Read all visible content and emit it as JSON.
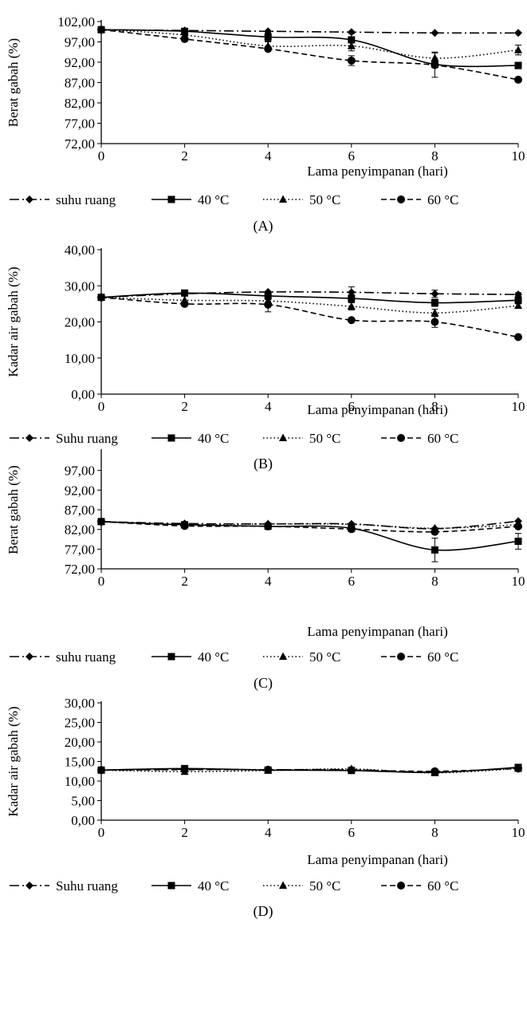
{
  "chart_data": [
    {
      "type": "line",
      "panel_label": "(A)",
      "xlabel": "Lama penyimpanan (hari)",
      "ylabel": "Berat gabah (%)",
      "x": [
        0,
        2,
        4,
        6,
        8,
        10
      ],
      "ylim": [
        72,
        102
      ],
      "yticks": [
        "72,00",
        "77,00",
        "82,00",
        "87,00",
        "92,00",
        "97,00",
        "102,00"
      ],
      "xticks": [
        "0",
        "2",
        "4",
        "6",
        "8",
        "10"
      ],
      "grid": false,
      "legend": "bottom",
      "series": [
        {
          "name": "suhu ruang",
          "style": "dashdot",
          "marker": "diamond",
          "values": [
            100,
            99.8,
            99.6,
            99.4,
            99.2,
            99.2
          ],
          "errors": [
            0,
            0,
            0,
            0,
            0,
            0
          ]
        },
        {
          "name": "40 °C",
          "style": "solid",
          "marker": "square",
          "values": [
            100,
            99.6,
            98.2,
            97.5,
            91.5,
            91.2
          ],
          "errors": [
            0,
            0,
            1,
            1.5,
            0.8,
            0.8
          ]
        },
        {
          "name": "50 °C",
          "style": "dotted",
          "marker": "triangle",
          "values": [
            100,
            98.7,
            96,
            96,
            93,
            95
          ],
          "errors": [
            0,
            0,
            1,
            1.2,
            1.5,
            1.2
          ]
        },
        {
          "name": "60 °C",
          "style": "dashed",
          "marker": "circle",
          "values": [
            100,
            97.7,
            95.3,
            92.4,
            91.3,
            87.7
          ],
          "errors": [
            0,
            0,
            0.5,
            1.2,
            3,
            0.5
          ]
        }
      ]
    },
    {
      "type": "line",
      "panel_label": "(B)",
      "xlabel": "Lama penyimpanan (hari)",
      "ylabel": "Kadar air gabah (%)",
      "x": [
        0,
        2,
        4,
        6,
        8,
        10
      ],
      "ylim": [
        0,
        40
      ],
      "yticks": [
        "0,00",
        "10,00",
        "20,00",
        "30,00",
        "40,00"
      ],
      "xticks": [
        "0",
        "2",
        "4",
        "6",
        "8",
        "10"
      ],
      "grid": false,
      "legend": "bottom",
      "series": [
        {
          "name": "Suhu ruang",
          "style": "dashdot",
          "marker": "diamond",
          "values": [
            26.8,
            27.8,
            28.3,
            28.2,
            27.8,
            27.6
          ],
          "errors": [
            0,
            0,
            0,
            1.5,
            1,
            0.5
          ]
        },
        {
          "name": "40 °C",
          "style": "solid",
          "marker": "square",
          "values": [
            26.8,
            28,
            27.2,
            26.5,
            25.3,
            26
          ],
          "errors": [
            0,
            0,
            1,
            1,
            1,
            0.5
          ]
        },
        {
          "name": "50 °C",
          "style": "dotted",
          "marker": "triangle",
          "values": [
            26.8,
            26,
            25.8,
            24.3,
            22.5,
            24.5
          ],
          "errors": [
            0,
            0,
            0,
            1,
            1,
            0.5
          ]
        },
        {
          "name": "60 °C",
          "style": "dashed",
          "marker": "circle",
          "values": [
            26.8,
            25,
            24.8,
            20.5,
            20,
            15.8
          ],
          "errors": [
            0,
            0,
            2,
            0.5,
            1.5,
            0.3
          ]
        }
      ]
    },
    {
      "type": "line",
      "panel_label": "(C)",
      "xlabel": "Lama penyimpanan  (hari)",
      "ylabel": "Berat gabah (%)",
      "x": [
        0,
        2,
        4,
        6,
        8,
        10
      ],
      "ylim": [
        72,
        102
      ],
      "yticks": [
        "72,00",
        "77,00",
        "82,00",
        "87,00",
        "92,00",
        "97,00"
      ],
      "xticks": [
        "0",
        "2",
        "4",
        "6",
        "8",
        "10"
      ],
      "grid": false,
      "legend": "bottom",
      "series": [
        {
          "name": "suhu ruang",
          "style": "dashdot",
          "marker": "diamond",
          "values": [
            84,
            83.5,
            83.4,
            83.4,
            82.2,
            84.1
          ],
          "errors": [
            0,
            0,
            0,
            0,
            0,
            0
          ]
        },
        {
          "name": "40 °C",
          "style": "solid",
          "marker": "square",
          "values": [
            84,
            83.2,
            82.8,
            82.3,
            76.8,
            79
          ],
          "errors": [
            0,
            0,
            0,
            0.5,
            3,
            2
          ]
        },
        {
          "name": "50 °C",
          "style": "dotted",
          "marker": "triangle",
          "values": [
            84,
            83.2,
            83.4,
            83.3,
            82.3,
            83.2
          ],
          "errors": [
            0,
            0,
            0,
            0,
            0,
            0
          ]
        },
        {
          "name": "60 °C",
          "style": "dashed",
          "marker": "circle",
          "values": [
            84,
            82.9,
            82.8,
            82.1,
            81.4,
            82.8
          ],
          "errors": [
            0,
            0,
            0,
            0,
            0.5,
            0
          ]
        }
      ]
    },
    {
      "type": "line",
      "panel_label": "(D)",
      "xlabel": "Lama penyimpanan (hari)",
      "ylabel": "Kadar air gabah (%)",
      "x": [
        0,
        2,
        4,
        6,
        8,
        10
      ],
      "ylim": [
        0,
        30
      ],
      "yticks": [
        "0,00",
        "5,00",
        "10,00",
        "15,00",
        "20,00",
        "25,00",
        "30,00"
      ],
      "xticks": [
        "0",
        "2",
        "4",
        "6",
        "8",
        "10"
      ],
      "grid": false,
      "legend": "bottom",
      "series": [
        {
          "name": "Suhu ruang",
          "style": "dashdot",
          "marker": "diamond",
          "values": [
            12.8,
            13,
            12.9,
            12.9,
            12.3,
            13.4
          ],
          "errors": [
            0,
            0,
            0,
            0,
            0,
            0
          ]
        },
        {
          "name": "40 °C",
          "style": "solid",
          "marker": "square",
          "values": [
            12.8,
            13.2,
            12.8,
            12.7,
            12.2,
            13.5
          ],
          "errors": [
            0,
            0,
            0,
            0,
            0,
            0
          ]
        },
        {
          "name": "50 °C",
          "style": "dotted",
          "marker": "triangle",
          "values": [
            12.8,
            12.4,
            12.7,
            13.1,
            12.1,
            13.2
          ],
          "errors": [
            0,
            0,
            0,
            0,
            0,
            0
          ]
        },
        {
          "name": "60 °C",
          "style": "dashed",
          "marker": "circle",
          "values": [
            12.8,
            12.9,
            12.9,
            12.8,
            12.5,
            13.2
          ],
          "errors": [
            0,
            0,
            0,
            0,
            0,
            0
          ]
        }
      ]
    }
  ]
}
